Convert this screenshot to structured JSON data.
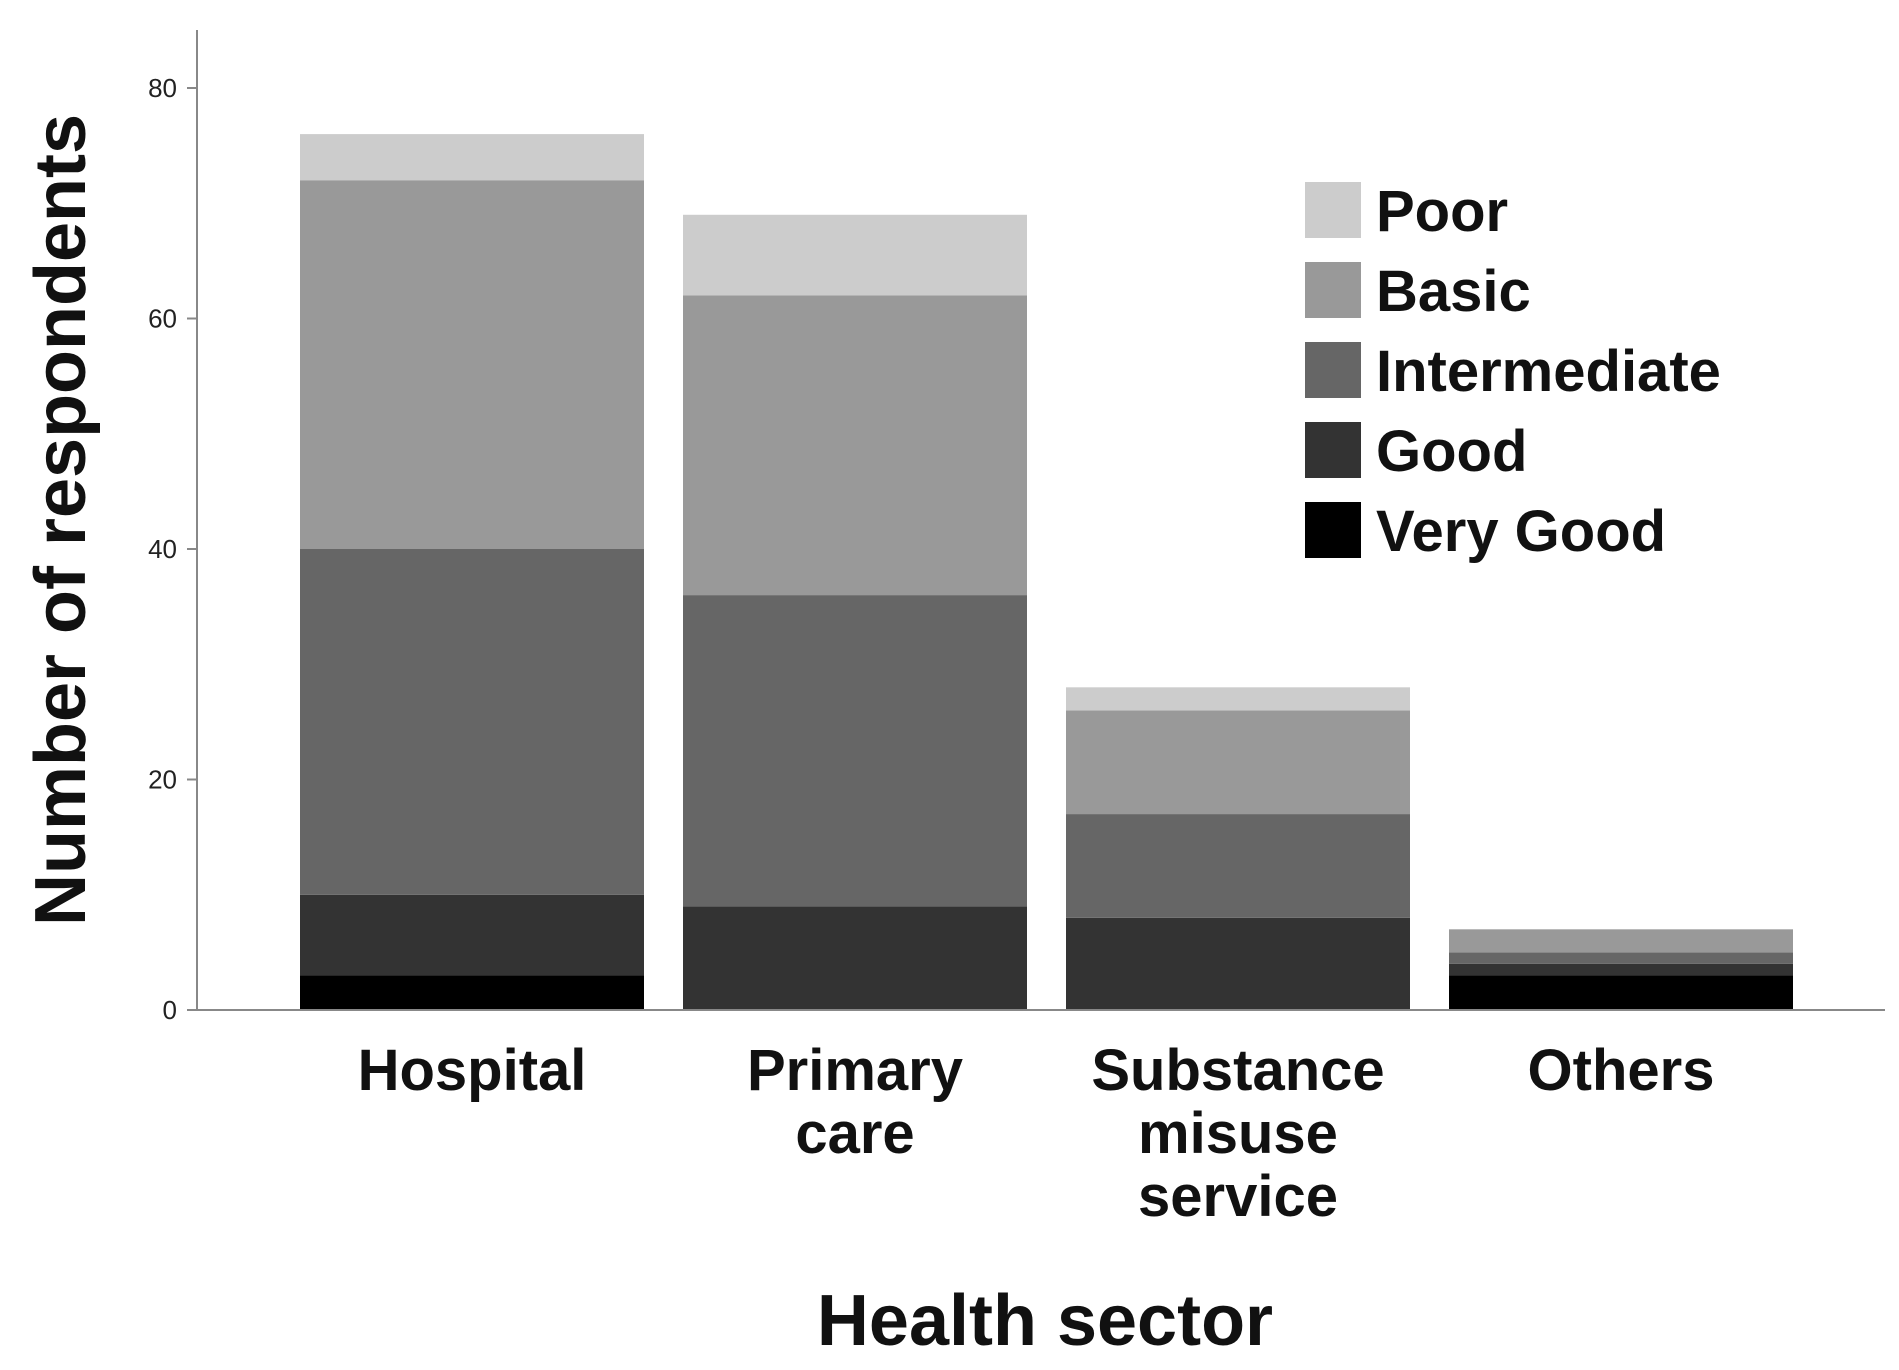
{
  "chart_data": {
    "type": "bar",
    "stacked": true,
    "xlabel": "Health sector",
    "ylabel": "Number of respondents",
    "ylim": [
      0,
      84
    ],
    "yticks": [
      "0",
      "20",
      "40",
      "60",
      "80"
    ],
    "ytick_values": [
      0,
      20,
      40,
      60,
      80
    ],
    "grid": false,
    "legend_position": "top-right",
    "categories": [
      [
        "Hospital"
      ],
      [
        "Primary",
        "care"
      ],
      [
        "Substance",
        "misuse",
        "service"
      ],
      [
        "Others"
      ]
    ],
    "series": [
      {
        "name": "Very Good",
        "color": "#000000",
        "values": [
          3,
          0,
          0,
          3
        ]
      },
      {
        "name": "Good",
        "color": "#333333",
        "values": [
          7,
          9,
          8,
          1
        ]
      },
      {
        "name": "Intermediate",
        "color": "#666666",
        "values": [
          30,
          27,
          9,
          1
        ]
      },
      {
        "name": "Basic",
        "color": "#999999",
        "values": [
          32,
          26,
          9,
          2
        ]
      },
      {
        "name": "Poor",
        "color": "#cccccc",
        "values": [
          4,
          7,
          2,
          0
        ]
      }
    ],
    "legend_order": [
      "Poor",
      "Basic",
      "Intermediate",
      "Good",
      "Very Good"
    ]
  }
}
